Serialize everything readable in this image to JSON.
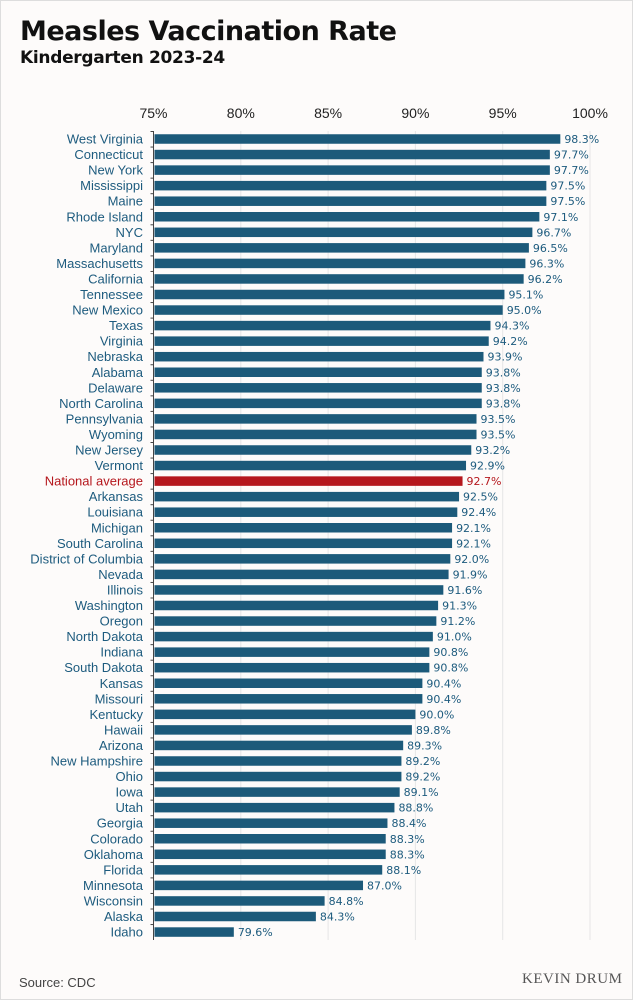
{
  "title": "Measles Vaccination Rate",
  "subtitle": "Kindergarten 2023-24",
  "source": "Source: CDC",
  "logo": "KEVIN DRUM",
  "colors": {
    "bar": "#1c5a7a",
    "highlight": "#b5171d",
    "label": "#1d5b7e",
    "grid": "#e6e6e6"
  },
  "chart_data": {
    "type": "bar",
    "orientation": "horizontal",
    "title": "Measles Vaccination Rate",
    "subtitle": "Kindergarten 2023-24",
    "xlabel": "",
    "ylabel": "",
    "xlim": [
      75,
      100
    ],
    "xticks": [
      "75%",
      "80%",
      "85%",
      "90%",
      "95%",
      "100%"
    ],
    "xtick_values": [
      75,
      80,
      85,
      90,
      95,
      100
    ],
    "grid": true,
    "highlight": "National average",
    "categories": [
      "West Virginia",
      "Connecticut",
      "New York",
      "Mississippi",
      "Maine",
      "Rhode Island",
      "NYC",
      "Maryland",
      "Massachusetts",
      "California",
      "Tennessee",
      "New Mexico",
      "Texas",
      "Virginia",
      "Nebraska",
      "Alabama",
      "Delaware",
      "North Carolina",
      "Pennsylvania",
      "Wyoming",
      "New Jersey",
      "Vermont",
      "National average",
      "Arkansas",
      "Louisiana",
      "Michigan",
      "South Carolina",
      "District of Columbia",
      "Nevada",
      "Illinois",
      "Washington",
      "Oregon",
      "North Dakota",
      "Indiana",
      "South Dakota",
      "Kansas",
      "Missouri",
      "Kentucky",
      "Hawaii",
      "Arizona",
      "New Hampshire",
      "Ohio",
      "Iowa",
      "Utah",
      "Georgia",
      "Colorado",
      "Oklahoma",
      "Florida",
      "Minnesota",
      "Wisconsin",
      "Alaska",
      "Idaho"
    ],
    "values": [
      98.3,
      97.7,
      97.7,
      97.5,
      97.5,
      97.1,
      96.7,
      96.5,
      96.3,
      96.2,
      95.1,
      95.0,
      94.3,
      94.2,
      93.9,
      93.8,
      93.8,
      93.8,
      93.5,
      93.5,
      93.2,
      92.9,
      92.7,
      92.5,
      92.4,
      92.1,
      92.1,
      92.0,
      91.9,
      91.6,
      91.3,
      91.2,
      91.0,
      90.8,
      90.8,
      90.4,
      90.4,
      90.0,
      89.8,
      89.3,
      89.2,
      89.2,
      89.1,
      88.8,
      88.4,
      88.3,
      88.3,
      88.1,
      87.0,
      84.8,
      84.3,
      79.6
    ],
    "value_labels": [
      "98.3%",
      "97.7%",
      "97.7%",
      "97.5%",
      "97.5%",
      "97.1%",
      "96.7%",
      "96.5%",
      "96.3%",
      "96.2%",
      "95.1%",
      "95.0%",
      "94.3%",
      "94.2%",
      "93.9%",
      "93.8%",
      "93.8%",
      "93.8%",
      "93.5%",
      "93.5%",
      "93.2%",
      "92.9%",
      "92.7%",
      "92.5%",
      "92.4%",
      "92.1%",
      "92.1%",
      "92.0%",
      "91.9%",
      "91.6%",
      "91.3%",
      "91.2%",
      "91.0%",
      "90.8%",
      "90.8%",
      "90.4%",
      "90.4%",
      "90.0%",
      "89.8%",
      "89.3%",
      "89.2%",
      "89.2%",
      "89.1%",
      "88.8%",
      "88.4%",
      "88.3%",
      "88.3%",
      "88.1%",
      "87.0%",
      "84.8%",
      "84.3%",
      "79.6%"
    ]
  }
}
